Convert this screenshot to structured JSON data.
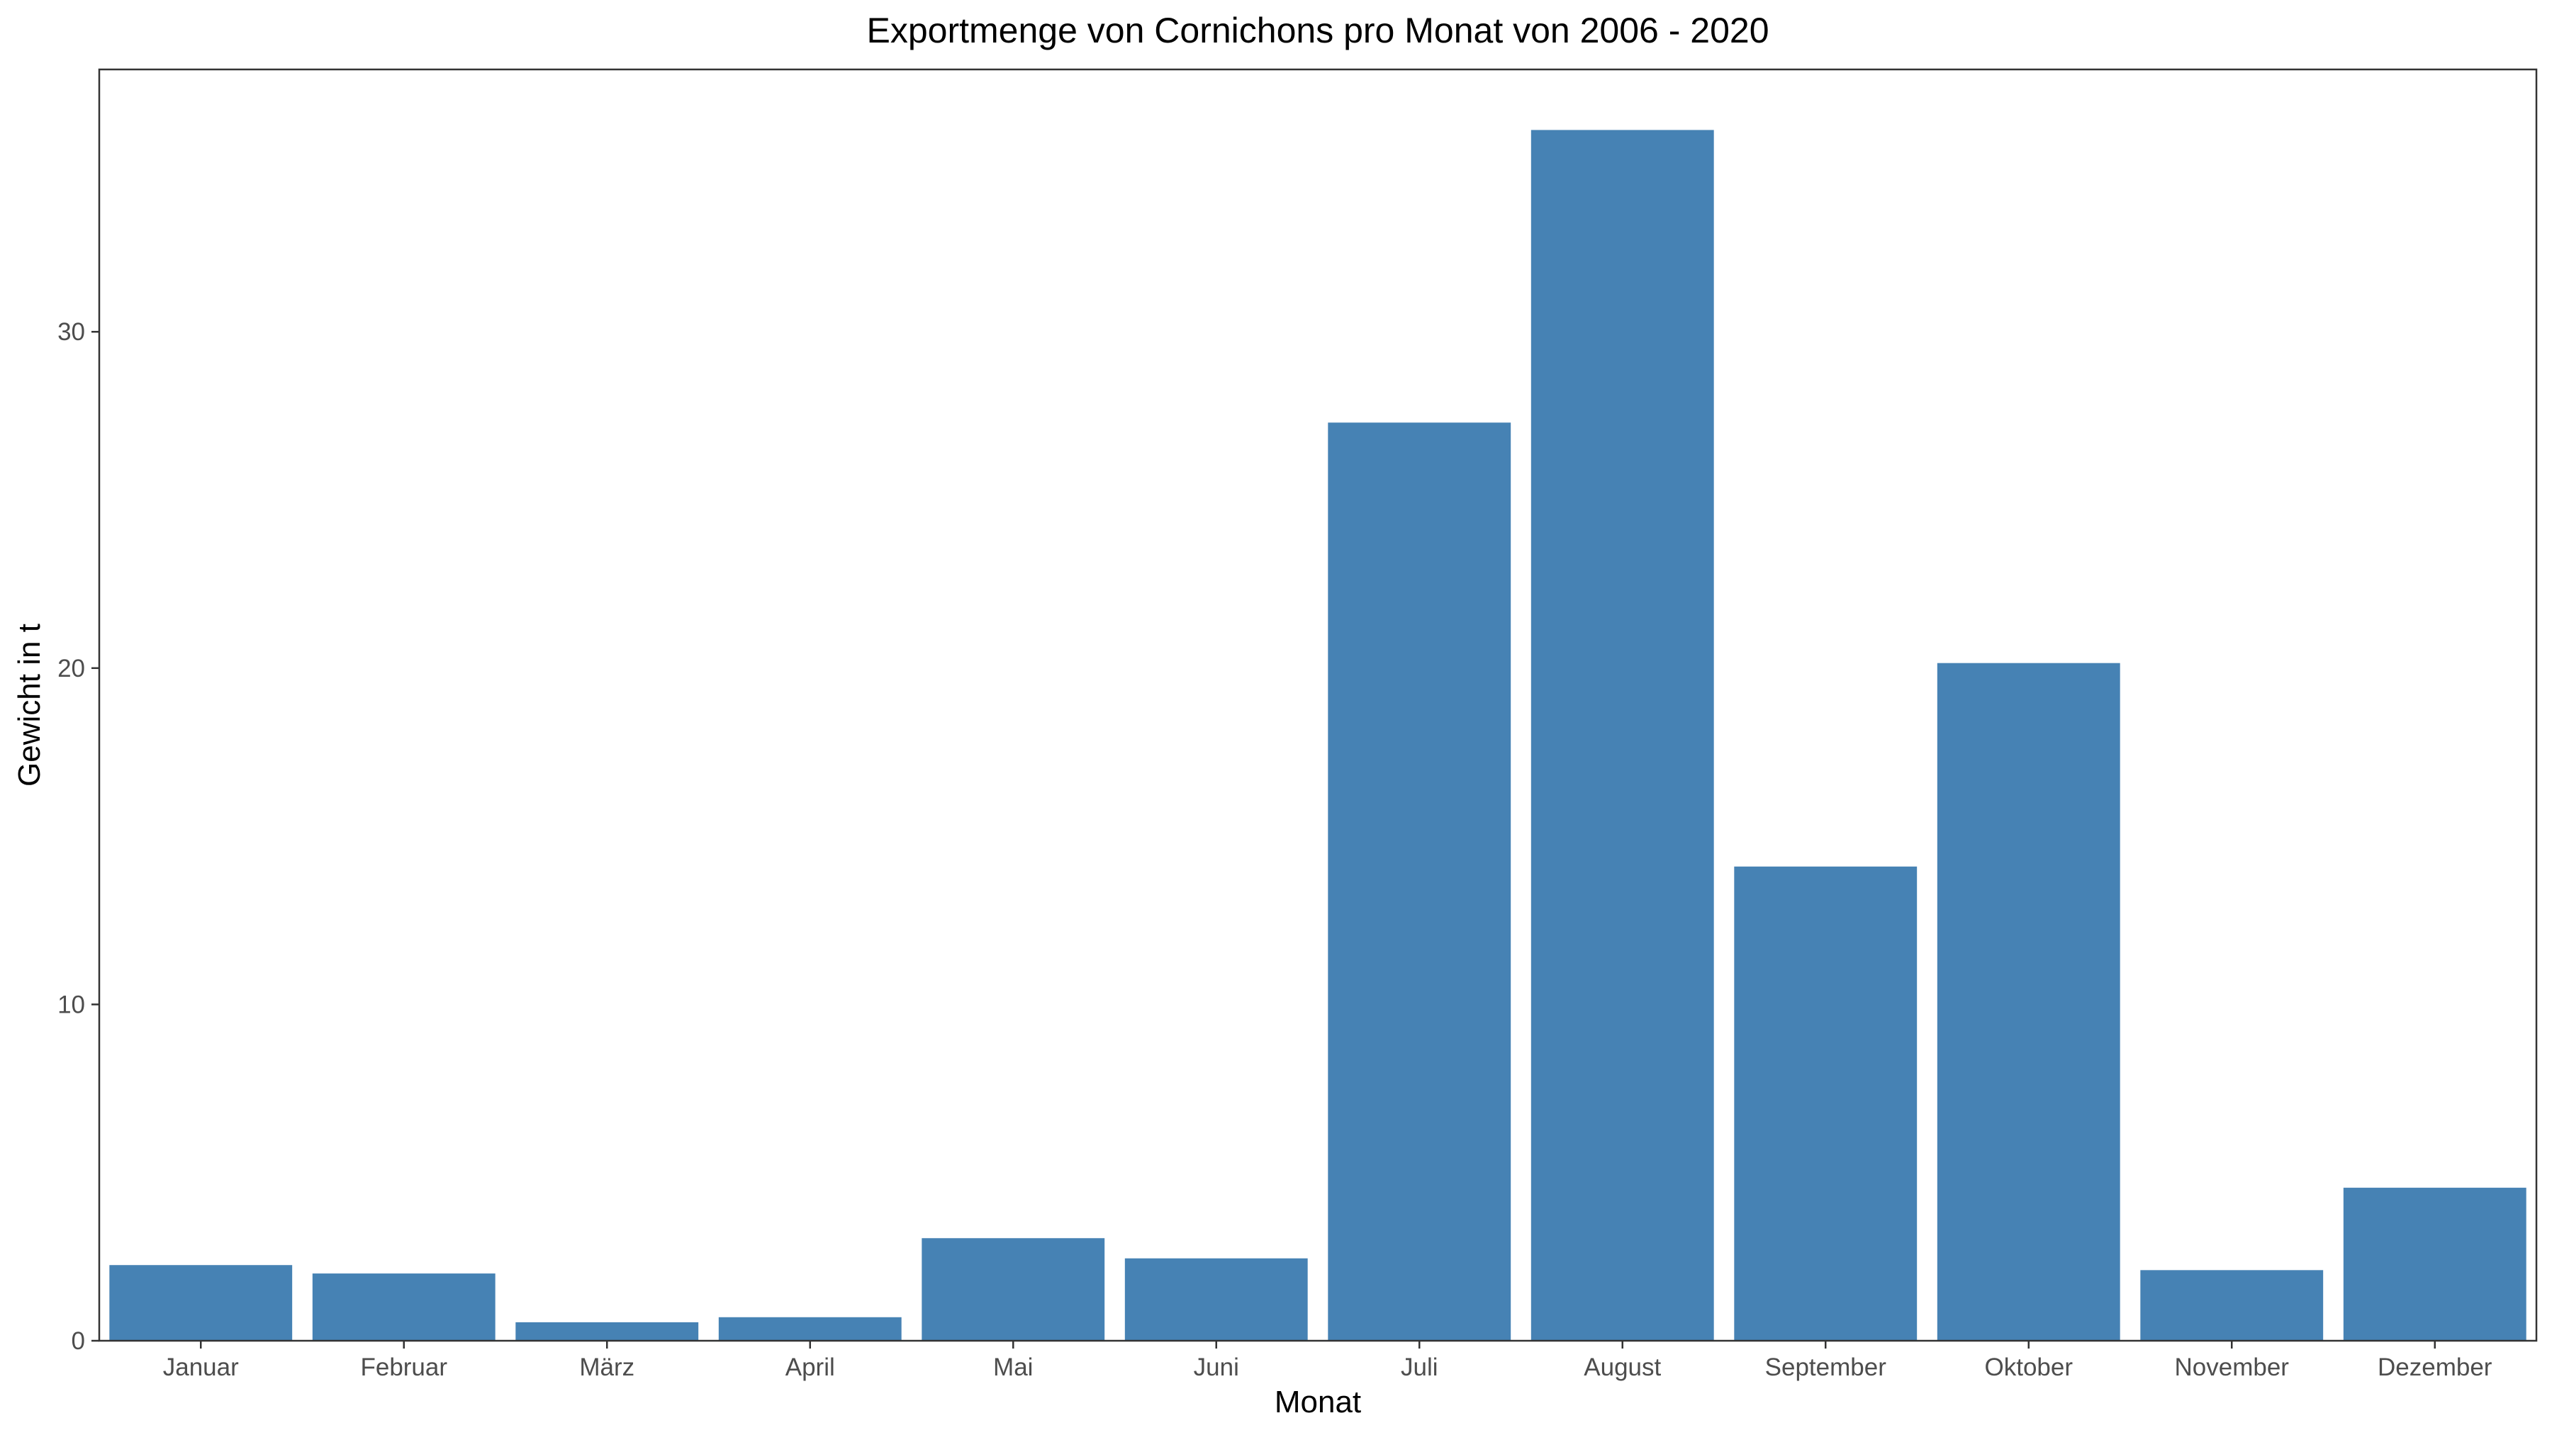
{
  "chart_data": {
    "type": "bar",
    "title": "Exportmenge von Cornichons pro Monat von 2006 - 2020",
    "xlabel": "Monat",
    "ylabel": "Gewicht in t",
    "categories": [
      "Januar",
      "Februar",
      "März",
      "April",
      "Mai",
      "Juni",
      "Juli",
      "August",
      "September",
      "Oktober",
      "November",
      "Dezember"
    ],
    "values": [
      2.25,
      2.0,
      0.55,
      0.7,
      3.05,
      2.45,
      27.3,
      36.0,
      14.1,
      20.15,
      2.1,
      4.55
    ],
    "yticks": [
      0,
      10,
      20,
      30
    ],
    "ylim": [
      0,
      37.8
    ],
    "grid": false,
    "legend": "none",
    "bar_color": "#4682B4",
    "axis_color": "#333333"
  }
}
